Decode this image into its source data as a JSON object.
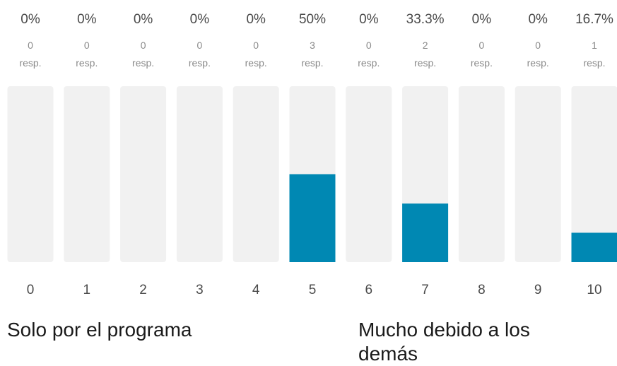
{
  "chart_data": {
    "type": "bar",
    "categories": [
      "0",
      "1",
      "2",
      "3",
      "4",
      "5",
      "6",
      "7",
      "8",
      "9",
      "10"
    ],
    "values": [
      0,
      0,
      0,
      0,
      0,
      50,
      0,
      33.3,
      0,
      0,
      16.7
    ],
    "percent_labels": [
      "0%",
      "0%",
      "0%",
      "0%",
      "0%",
      "50%",
      "0%",
      "33.3%",
      "0%",
      "0%",
      "16.7%"
    ],
    "counts": [
      "0",
      "0",
      "0",
      "0",
      "0",
      "3",
      "0",
      "2",
      "0",
      "0",
      "1"
    ],
    "count_unit": "resp.",
    "ylim": [
      0,
      100
    ],
    "grid": false,
    "legend": "none",
    "title": "",
    "xlabel": "",
    "ylabel": "",
    "colors": {
      "bar_fill": "#0088b3",
      "track": "#f1f1f1"
    }
  },
  "scale_labels": {
    "left": "Solo por el programa",
    "right": "Mucho debido a los demás"
  }
}
